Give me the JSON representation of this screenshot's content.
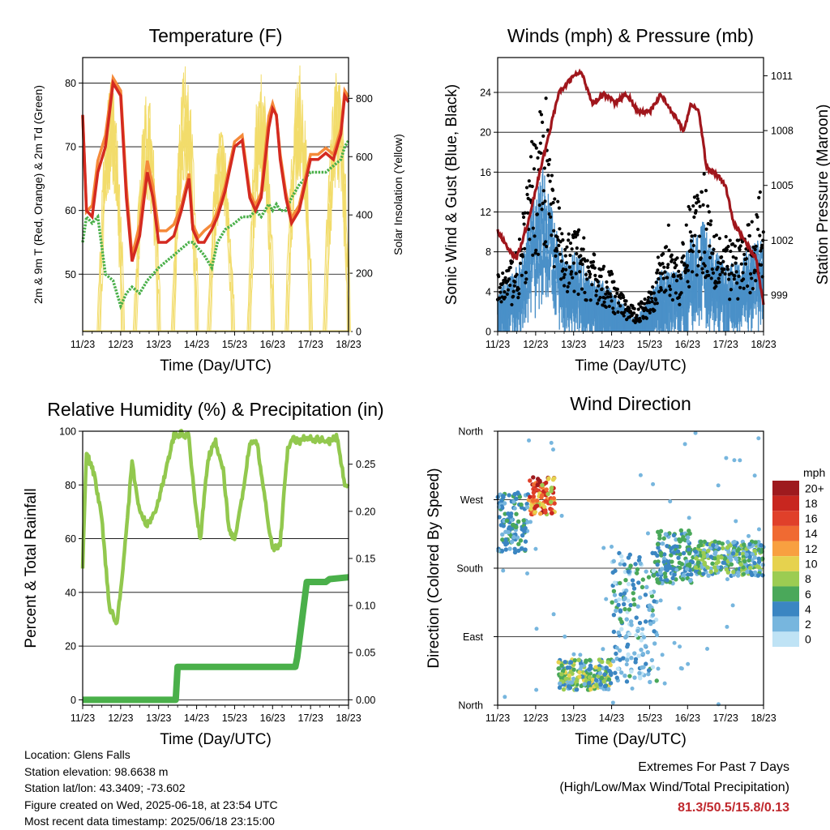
{
  "colors": {
    "temp_2m": "#d42a20",
    "temp_9m": "#f58a3a",
    "dewpoint": "#4ab04a",
    "solar": "#f2dc6b",
    "wind": "#4a90c8",
    "gust": "#000000",
    "pressure": "#a0161c",
    "rh": "#92c84e",
    "precip": "#4ab04a",
    "extremes": "#c0282d"
  },
  "x_ticks": [
    "11/23",
    "12/23",
    "13/23",
    "14/23",
    "15/23",
    "16/23",
    "17/23",
    "18/23"
  ],
  "chart_data": [
    {
      "type": "line",
      "title": "Temperature (F)",
      "xlabel": "Time (Day/UTC)",
      "ylabel": "2m & 9m T (Red, Orange) & 2m Td (Green)",
      "y2label": "Solar Insolation (Yellow)",
      "ylim": [
        41,
        84
      ],
      "y_ticks": [
        50,
        60,
        70,
        80
      ],
      "y2lim": [
        0,
        940
      ],
      "y2_ticks": [
        0,
        200,
        400,
        600,
        800
      ],
      "grid": "horizontal",
      "x_day": [
        0,
        0.1,
        0.25,
        0.4,
        0.6,
        0.8,
        1.0,
        1.15,
        1.3,
        1.5,
        1.7,
        1.85,
        2.0,
        2.2,
        2.4,
        2.6,
        2.8,
        2.9,
        3.05,
        3.2,
        3.4,
        3.55,
        3.75,
        4.0,
        4.2,
        4.4,
        4.55,
        4.7,
        4.9,
        5.0,
        5.1,
        5.2,
        5.35,
        5.5,
        5.7,
        5.85,
        6.0,
        6.2,
        6.4,
        6.6,
        6.8,
        6.9,
        7.0
      ],
      "series": [
        {
          "values": [
            75,
            60,
            59,
            66,
            70,
            80,
            78,
            62,
            52,
            56,
            66,
            62,
            55,
            55,
            56,
            60,
            65,
            57,
            55,
            55,
            57,
            59,
            63,
            70,
            71,
            62,
            60,
            62,
            73,
            76,
            75,
            68,
            62,
            58,
            60,
            64,
            68,
            68,
            69,
            68,
            72,
            78,
            77
          ]
        },
        {
          "values": [
            74,
            59,
            60,
            67,
            71,
            80,
            78,
            63,
            52,
            57,
            67,
            63,
            56,
            56,
            57,
            60,
            65,
            57,
            55,
            56,
            57,
            59,
            63,
            70,
            71,
            62,
            60,
            62,
            74,
            76,
            74,
            68,
            62,
            58,
            60,
            64,
            68,
            68,
            69,
            68,
            72,
            78,
            77
          ]
        },
        {
          "values": [
            55,
            59,
            58,
            59,
            50,
            49,
            45,
            47,
            48,
            47,
            49,
            50,
            51,
            52,
            53,
            54,
            55,
            55,
            54,
            53,
            51,
            55,
            57,
            58,
            59,
            59,
            60,
            59,
            61,
            60,
            61,
            60,
            60,
            62,
            64,
            65,
            66,
            66,
            66,
            67,
            68,
            70,
            71
          ]
        },
        {
          "peaks_day": [
            0.75,
            1.7,
            2.7,
            3.65,
            4.7,
            5.7,
            6.7
          ],
          "peak_values": [
            880,
            820,
            920,
            700,
            900,
            930,
            900
          ]
        }
      ]
    },
    {
      "type": "scatter",
      "title": "Winds (mph) & Pressure (mb)",
      "xlabel": "Time (Day/UTC)",
      "ylabel": "Sonic Wind & Gust (Blue, Black)",
      "y2label": "Station Pressure (Maroon)",
      "ylim": [
        0,
        27.5
      ],
      "y_ticks": [
        0,
        4,
        8,
        12,
        16,
        20,
        24
      ],
      "y2lim": [
        997,
        1012
      ],
      "y2_ticks": [
        999,
        1002,
        1005,
        1008,
        1011
      ],
      "grid": "horizontal",
      "wind_envelope": {
        "x_day": [
          0,
          0.3,
          0.6,
          0.9,
          1.2,
          1.5,
          1.8,
          2.1,
          2.4,
          2.7,
          3.0,
          3.3,
          3.6,
          3.9,
          4.2,
          4.5,
          4.8,
          5.1,
          5.4,
          5.7,
          6.0,
          6.3,
          6.6,
          6.9,
          7.0
        ],
        "gust": [
          5,
          6,
          8,
          16,
          22,
          12,
          8,
          9,
          7,
          6,
          5,
          3,
          2,
          3,
          6,
          9,
          6,
          12,
          14,
          10,
          8,
          8,
          9,
          12,
          11
        ],
        "wind": [
          3,
          4,
          5,
          9,
          12,
          8,
          5,
          6,
          4,
          4,
          3,
          2,
          1,
          2,
          4,
          5,
          4,
          7,
          8,
          6,
          5,
          5,
          6,
          7,
          6
        ]
      },
      "pressure": {
        "x_day": [
          0,
          0.3,
          0.5,
          0.8,
          1.2,
          1.6,
          2.0,
          2.2,
          2.5,
          2.8,
          3.1,
          3.4,
          3.7,
          4.0,
          4.3,
          4.6,
          4.9,
          5.1,
          5.3,
          5.5,
          5.8,
          6.0,
          6.2,
          6.5,
          6.8,
          7.0
        ],
        "values": [
          1002.5,
          1001.5,
          1001,
          1003,
          1006.5,
          1010,
          1011,
          1011.2,
          1009.5,
          1010,
          1009.5,
          1010,
          1009,
          1009,
          1010,
          1009,
          1008,
          1009.5,
          1009,
          1006,
          1005.5,
          1005,
          1003,
          1002,
          1001,
          998.5
        ]
      }
    },
    {
      "type": "line",
      "title": "Relative Humidity (%) & Precipitation (in)",
      "xlabel": "Time (Day/UTC)",
      "ylabel": "Percent & Total Rainfall",
      "ylim": [
        -2,
        100
      ],
      "y_ticks": [
        0,
        20,
        40,
        60,
        80,
        100
      ],
      "y2lim": [
        -0.0057,
        0.285
      ],
      "y2_ticks": [
        "0.00",
        "0.05",
        "0.10",
        "0.15",
        "0.20",
        "0.25"
      ],
      "grid": "horizontal",
      "rh": {
        "x_day": [
          0,
          0.1,
          0.3,
          0.5,
          0.7,
          0.9,
          1.1,
          1.3,
          1.5,
          1.7,
          1.9,
          2.1,
          2.4,
          2.6,
          2.8,
          2.95,
          3.1,
          3.3,
          3.5,
          3.7,
          3.85,
          4.0,
          4.2,
          4.4,
          4.6,
          4.8,
          5.0,
          5.2,
          5.4,
          5.55,
          5.7,
          5.9,
          6.1,
          6.3,
          6.5,
          6.7,
          6.9,
          7.0
        ],
        "values": [
          50,
          92,
          84,
          68,
          35,
          28,
          55,
          88,
          70,
          65,
          70,
          80,
          98,
          99,
          98,
          74,
          60,
          90,
          96,
          86,
          63,
          60,
          75,
          96,
          95,
          74,
          56,
          58,
          94,
          97,
          96,
          98,
          97,
          97,
          96,
          98,
          80,
          80
        ]
      },
      "precip": {
        "x_day": [
          0,
          2.45,
          2.5,
          5.6,
          5.65,
          5.9,
          6.0,
          6.4,
          6.5,
          7.0
        ],
        "values": [
          0,
          0,
          0.035,
          0.035,
          0.045,
          0.125,
          0.125,
          0.125,
          0.128,
          0.13
        ]
      }
    },
    {
      "type": "scatter",
      "title": "Wind Direction",
      "xlabel": "Time (Day/UTC)",
      "ylabel": "Direction (Colored By Speed)",
      "y_ticks": [
        "North",
        "East",
        "South",
        "West",
        "North"
      ],
      "grid": "horizontal",
      "colorbar": {
        "title": "mph",
        "labels": [
          "20+",
          "18",
          "16",
          "14",
          "12",
          "10",
          "8",
          "6",
          "4",
          "2",
          "0"
        ],
        "colors": [
          "#9e1a1e",
          "#c8261f",
          "#e0402a",
          "#f06a32",
          "#f8a040",
          "#e6d24e",
          "#9ccc52",
          "#4aa85a",
          "#3b86c2",
          "#77b6de",
          "#bfe3f5"
        ]
      },
      "clusters": [
        {
          "x_day": [
            0,
            0.8
          ],
          "dir": [
            200,
            280
          ],
          "speed": [
            2,
            6
          ]
        },
        {
          "x_day": [
            0.8,
            1.5
          ],
          "dir": [
            250,
            300
          ],
          "speed": [
            8,
            20
          ]
        },
        {
          "x_day": [
            1.6,
            3.0
          ],
          "dir": [
            20,
            60
          ],
          "speed": [
            2,
            10
          ]
        },
        {
          "x_day": [
            3.0,
            4.2
          ],
          "dir": [
            30,
            200
          ],
          "speed": [
            0,
            6
          ]
        },
        {
          "x_day": [
            4.2,
            5.2
          ],
          "dir": [
            160,
            230
          ],
          "speed": [
            2,
            7
          ]
        },
        {
          "x_day": [
            5.2,
            7.0
          ],
          "dir": [
            170,
            215
          ],
          "speed": [
            1,
            9
          ]
        }
      ]
    }
  ],
  "footer": {
    "location": "Location: Glens Falls",
    "elevation": "Station elevation: 98.6638 m",
    "latlon": "Station lat/lon: 43.3409; -73.602",
    "created": "Figure created on Wed, 2025-06-18, at 23:54 UTC",
    "recent": "Most recent data timestamp: 2025/06/18 23:15:00",
    "extremes_title": "Extremes For Past 7 Days",
    "extremes_sub": "(High/Low/Max Wind/Total Precipitation)",
    "extremes_values": "81.3/50.5/15.8/0.13"
  }
}
